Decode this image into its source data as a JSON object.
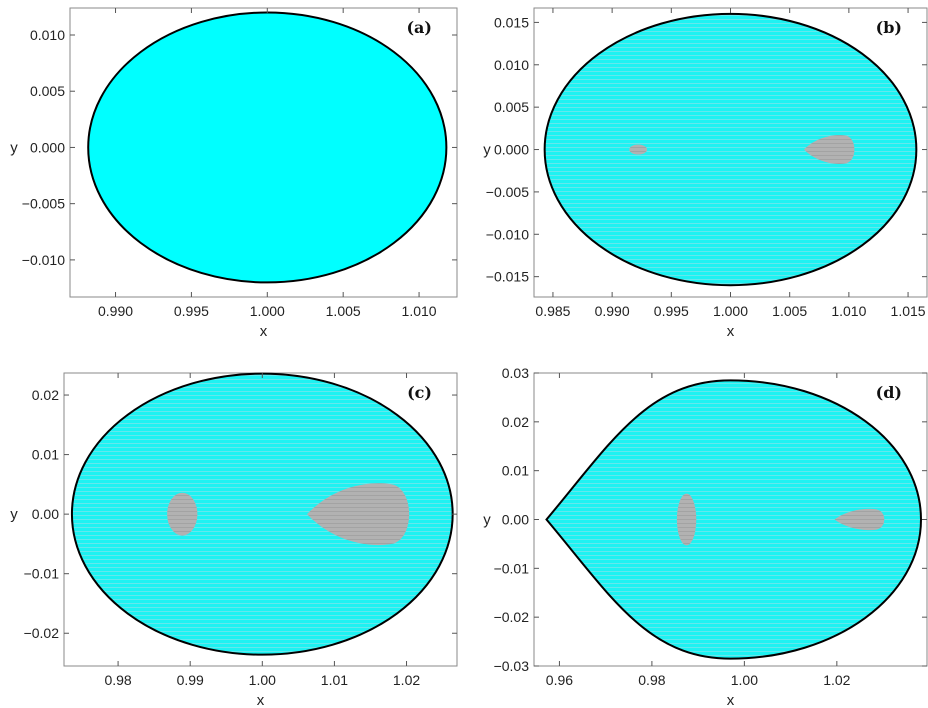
{
  "chart_data": [
    {
      "type": "area",
      "panel_label": "(a)",
      "xlabel": "x",
      "ylabel": "y",
      "xlim": [
        0.987,
        1.0125
      ],
      "ylim": [
        -0.0133,
        0.0124
      ],
      "xticks": [
        0.99,
        0.995,
        1.0,
        1.005,
        1.01
      ],
      "xtick_labels": [
        "0.990",
        "0.995",
        "1.000",
        "1.005",
        "1.010"
      ],
      "yticks": [
        -0.01,
        -0.005,
        0.0,
        0.005,
        0.01
      ],
      "ytick_labels": [
        "−0.010",
        "−0.005",
        "0.000",
        "0.005",
        "0.010"
      ],
      "region": {
        "center_x": 1.0,
        "half_width_left": 0.0118,
        "half_width_right": 0.0118,
        "half_height": 0.012,
        "fill": "#00ffff"
      },
      "islands": []
    },
    {
      "type": "area",
      "panel_label": "(b)",
      "xlabel": "x",
      "ylabel": "y",
      "xlim": [
        0.9834,
        1.0166
      ],
      "ylim": [
        -0.0174,
        0.0167
      ],
      "xticks": [
        0.985,
        0.99,
        0.995,
        1.0,
        1.005,
        1.01,
        1.015
      ],
      "xtick_labels": [
        "0.985",
        "0.990",
        "0.995",
        "1.000",
        "1.005",
        "1.010",
        "1.015"
      ],
      "yticks": [
        -0.015,
        -0.01,
        -0.005,
        0.0,
        0.005,
        0.01,
        0.015
      ],
      "ytick_labels": [
        "−0.015",
        "−0.010",
        "−0.005",
        "0.000",
        "0.005",
        "0.010",
        "0.015"
      ],
      "region": {
        "center_x": 1.0,
        "half_width_left": 0.0157,
        "half_width_right": 0.0157,
        "half_height": 0.016,
        "fill": "#1ef2f2"
      },
      "islands": [
        {
          "shape": "ellipse",
          "cx": 0.9922,
          "cy": 0.0,
          "rx": 0.00075,
          "ry": 0.0006
        },
        {
          "shape": "teardrop",
          "x_tip": 1.0062,
          "x_end": 1.0106,
          "half_height": 0.0018
        }
      ]
    },
    {
      "type": "area",
      "panel_label": "(c)",
      "xlabel": "x",
      "ylabel": "y",
      "xlim": [
        0.9725,
        1.027
      ],
      "ylim": [
        -0.0255,
        0.0237
      ],
      "xticks": [
        0.98,
        0.99,
        1.0,
        1.01,
        1.02
      ],
      "xtick_labels": [
        "0.98",
        "0.99",
        "1.00",
        "1.01",
        "1.02"
      ],
      "yticks": [
        -0.02,
        -0.01,
        0.0,
        0.01,
        0.02
      ],
      "ytick_labels": [
        "−0.02",
        "−0.01",
        "0.00",
        "0.01",
        "0.02"
      ],
      "region": {
        "center_x": 1.0,
        "half_width_left": 0.0264,
        "half_width_right": 0.0264,
        "half_height": 0.0236,
        "fill": "#1ef2f2"
      },
      "islands": [
        {
          "shape": "ellipse",
          "cx": 0.9889,
          "cy": 0.0,
          "rx": 0.0021,
          "ry": 0.0036
        },
        {
          "shape": "teardrop",
          "x_tip": 1.0062,
          "x_end": 1.0208,
          "half_height": 0.0055
        }
      ]
    },
    {
      "type": "area",
      "panel_label": "(d)",
      "xlabel": "x",
      "ylabel": "y",
      "xlim": [
        0.9545,
        1.0395
      ],
      "ylim": [
        -0.03,
        0.03
      ],
      "xticks": [
        0.96,
        0.98,
        1.0,
        1.02
      ],
      "xtick_labels": [
        "0.96",
        "0.98",
        "1.00",
        "1.02"
      ],
      "yticks": [
        -0.03,
        -0.02,
        -0.01,
        0.0,
        0.01,
        0.02,
        0.03
      ],
      "ytick_labels": [
        "−0.03",
        "−0.02",
        "−0.01",
        "0.00",
        "0.01",
        "0.02",
        "0.03"
      ],
      "region": {
        "center_x": 0.997,
        "half_width_left": 0.0398,
        "half_width_right": 0.0412,
        "half_height": 0.0285,
        "pointed_left": true,
        "fill": "#1ef2f2"
      },
      "islands": [
        {
          "shape": "ellipse",
          "cx": 0.9875,
          "cy": 0.0,
          "rx": 0.0021,
          "ry": 0.0053
        },
        {
          "shape": "teardrop",
          "x_tip": 1.0195,
          "x_end": 1.0306,
          "half_height": 0.0023
        }
      ]
    }
  ]
}
